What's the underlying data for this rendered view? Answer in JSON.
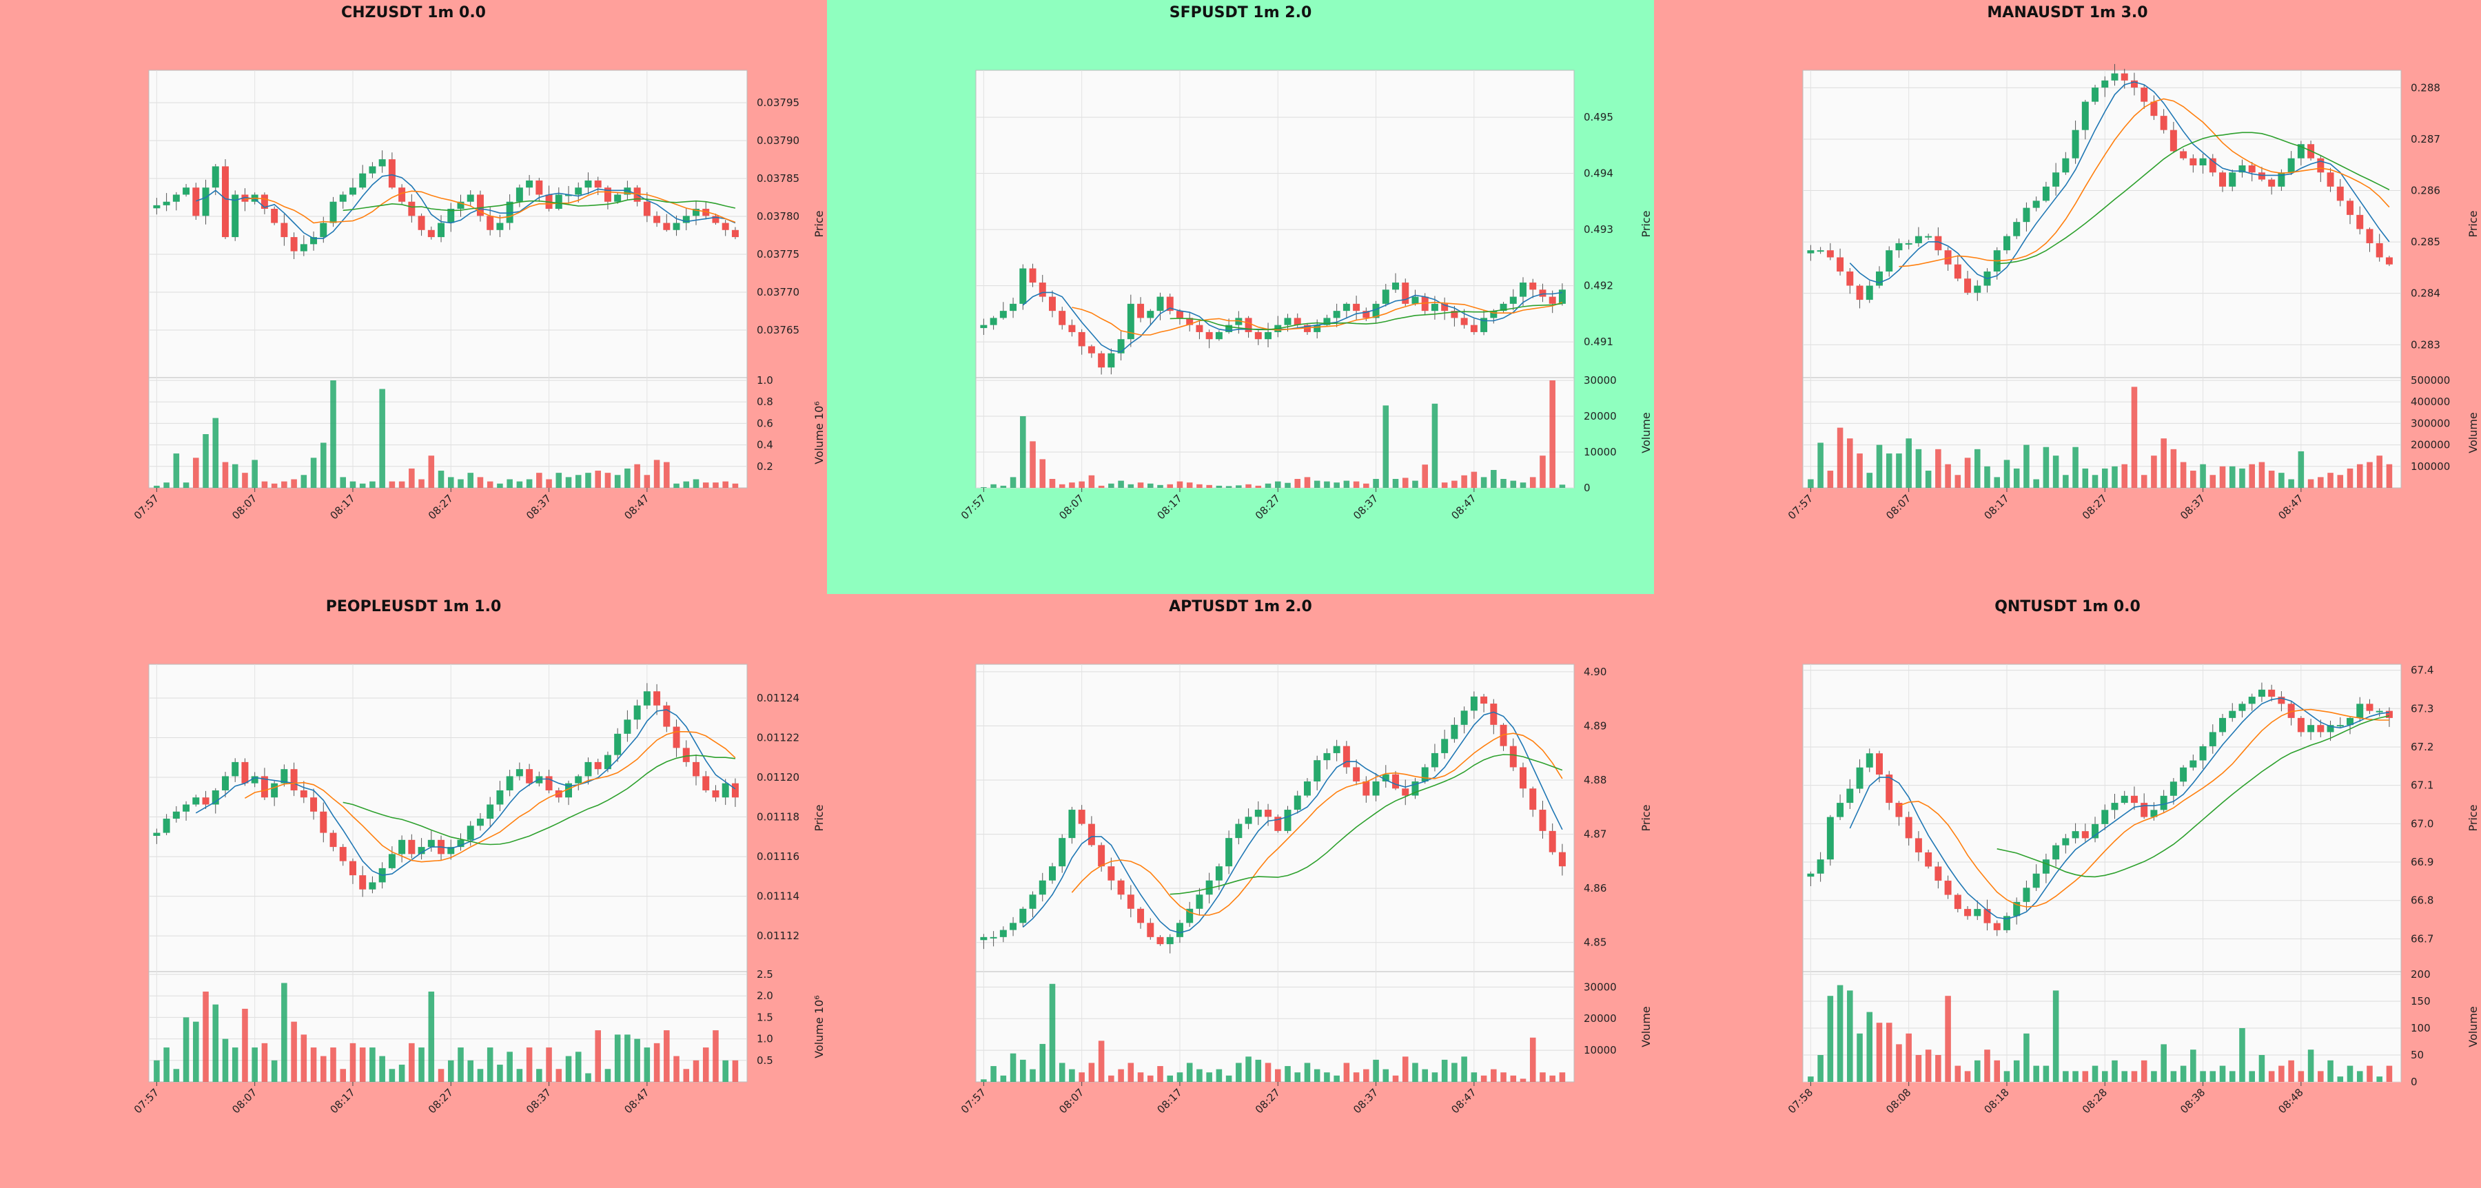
{
  "chart_data": [
    {
      "type": "candlestick",
      "title": "CHZUSDT 1m 0.0",
      "background": "#ffa09b",
      "ylabel": "Price",
      "vlabel": "Volume",
      "vmult": "10⁶",
      "price_ticks": [
        "0.03765",
        "0.03770",
        "0.03775",
        "0.03780",
        "0.03785",
        "0.03790",
        "0.03795"
      ],
      "price_range": [
        0.03759,
        0.03799
      ],
      "vol_ticks": [
        "0.2",
        "0.4",
        "0.6",
        "0.8",
        "1.0"
      ],
      "vol_max": 1.0,
      "x_ticks": [
        "07:57",
        "08:07",
        "08:17",
        "08:27",
        "08:37",
        "08:47"
      ],
      "first_tick_index": 0,
      "tick_spacing": 10,
      "n": 60,
      "start": 0.03781,
      "drift": [
        0.5,
        1,
        2,
        3,
        -1,
        3,
        6,
        -4,
        2,
        1,
        2,
        0,
        -2,
        -4,
        -6,
        -5,
        -4,
        -2,
        1,
        2,
        3,
        5,
        6,
        7,
        3,
        1,
        -1,
        -3,
        -4,
        -2,
        0,
        1,
        2,
        -1,
        -3,
        -2,
        1,
        3,
        4,
        2,
        0,
        2,
        2,
        3,
        4,
        3,
        1,
        2,
        3,
        1,
        -1,
        -2,
        -3,
        -2,
        -1,
        0,
        -1,
        -2,
        -3,
        -4
      ],
      "volume": [
        0.02,
        0.05,
        0.32,
        0.05,
        0.28,
        0.5,
        0.65,
        0.24,
        0.22,
        0.14,
        0.26,
        0.06,
        0.04,
        0.06,
        0.08,
        0.12,
        0.28,
        0.42,
        1.0,
        0.1,
        0.06,
        0.04,
        0.06,
        0.92,
        0.06,
        0.06,
        0.18,
        0.08,
        0.3,
        0.16,
        0.1,
        0.08,
        0.14,
        0.1,
        0.06,
        0.04,
        0.08,
        0.06,
        0.08,
        0.14,
        0.08,
        0.14,
        0.1,
        0.12,
        0.14,
        0.16,
        0.14,
        0.12,
        0.18,
        0.22,
        0.12,
        0.26,
        0.24,
        0.04,
        0.06,
        0.08,
        0.05,
        0.05,
        0.06,
        0.04
      ]
    },
    {
      "type": "candlestick",
      "title": "SFPUSDT 1m 2.0",
      "background": "#8fffbf",
      "ylabel": "Price",
      "vlabel": "Volume",
      "vmult": "",
      "price_ticks": [
        "0.491",
        "0.492",
        "0.493",
        "0.494",
        "0.495"
      ],
      "price_range": [
        0.4904,
        0.4958
      ],
      "vol_ticks": [
        "0",
        "10000",
        "20000",
        "30000"
      ],
      "vol_max": 30000,
      "x_ticks": [
        "07:57",
        "08:07",
        "08:17",
        "08:27",
        "08:37",
        "08:47"
      ],
      "first_tick_index": 0,
      "tick_spacing": 10,
      "n": 60,
      "start": 0.4913,
      "drift": [
        0,
        1,
        2,
        3,
        8,
        6,
        4,
        2,
        0,
        -1,
        -3,
        -4,
        -6,
        -4,
        -2,
        3,
        1,
        2,
        4,
        2,
        1,
        0,
        -1,
        -2,
        -1,
        0,
        1,
        -1,
        -2,
        -1,
        0,
        1,
        0,
        -1,
        0,
        1,
        2,
        3,
        2,
        1,
        3,
        5,
        6,
        3,
        4,
        2,
        3,
        2,
        1,
        0,
        -1,
        1,
        2,
        3,
        4,
        6,
        5,
        4,
        3,
        5
      ],
      "volume": [
        200,
        1000,
        600,
        3000,
        20000,
        13000,
        8000,
        2500,
        1000,
        1500,
        1800,
        3500,
        600,
        1200,
        2000,
        1000,
        1500,
        1200,
        800,
        1000,
        1800,
        1500,
        1000,
        800,
        600,
        500,
        700,
        1000,
        600,
        1200,
        1800,
        1400,
        2500,
        3000,
        2000,
        1800,
        1500,
        2000,
        1800,
        1200,
        2500,
        23000,
        2500,
        2800,
        2000,
        6500,
        23500,
        1500,
        2000,
        3500,
        4500,
        3000,
        5000,
        2500,
        2000,
        1500,
        3000,
        9000,
        30000,
        900
      ]
    },
    {
      "type": "candlestick",
      "title": "MANAUSDT 1m 3.0",
      "background": "#ffa09b",
      "ylabel": "Price",
      "vlabel": "Volume",
      "vmult": "",
      "price_ticks": [
        "0.283",
        "0.284",
        "0.285",
        "0.286",
        "0.287",
        "0.288"
      ],
      "price_range": [
        0.2824,
        0.2883
      ],
      "vol_ticks": [
        "100000",
        "200000",
        "300000",
        "400000",
        "500000"
      ],
      "vol_max": 500000,
      "x_ticks": [
        "07:57",
        "08:07",
        "08:17",
        "08:27",
        "08:37",
        "08:47"
      ],
      "first_tick_index": 0,
      "tick_spacing": 10,
      "n": 60,
      "start": 0.2847,
      "drift": [
        1,
        1,
        0,
        -2,
        -4,
        -6,
        -4,
        -2,
        1,
        2,
        2,
        3,
        3,
        1,
        -1,
        -3,
        -5,
        -4,
        -2,
        1,
        3,
        5,
        7,
        8,
        10,
        12,
        14,
        18,
        22,
        24,
        25,
        26,
        25,
        24,
        22,
        20,
        18,
        15,
        14,
        13,
        14,
        12,
        10,
        12,
        13,
        12,
        11,
        10,
        12,
        14,
        16,
        14,
        12,
        10,
        8,
        6,
        4,
        2,
        0,
        -1
      ],
      "volume": [
        40000,
        210000,
        80000,
        280000,
        230000,
        160000,
        70000,
        200000,
        160000,
        160000,
        230000,
        180000,
        80000,
        180000,
        110000,
        60000,
        140000,
        180000,
        100000,
        50000,
        130000,
        90000,
        200000,
        40000,
        190000,
        150000,
        60000,
        190000,
        90000,
        60000,
        90000,
        100000,
        110000,
        470000,
        60000,
        150000,
        230000,
        180000,
        120000,
        80000,
        110000,
        60000,
        100000,
        100000,
        90000,
        110000,
        120000,
        80000,
        70000,
        40000,
        170000,
        40000,
        50000,
        70000,
        60000,
        90000,
        110000,
        120000,
        150000,
        110000
      ]
    },
    {
      "type": "candlestick",
      "title": "PEOPLEUSDT 1m 1.0",
      "background": "#ffa09b",
      "ylabel": "Price",
      "vlabel": "Volume",
      "vmult": "10⁶",
      "price_ticks": [
        "0.01112",
        "0.01114",
        "0.01116",
        "0.01118",
        "0.01120",
        "0.01122",
        "0.01124"
      ],
      "price_range": [
        0.011103,
        0.011256
      ],
      "vol_ticks": [
        "0.5",
        "1.0",
        "1.5",
        "2.0",
        "2.5"
      ],
      "vol_max": 2.5,
      "x_ticks": [
        "07:57",
        "08:07",
        "08:17",
        "08:27",
        "08:37",
        "08:47"
      ],
      "first_tick_index": 0,
      "tick_spacing": 10,
      "n": 60,
      "start": 0.011172,
      "drift": [
        0,
        2,
        3,
        4,
        5,
        4,
        6,
        8,
        10,
        7,
        8,
        5,
        7,
        9,
        6,
        5,
        3,
        0,
        -2,
        -4,
        -6,
        -8,
        -7,
        -5,
        -3,
        -1,
        -3,
        -2,
        -1,
        -3,
        -2,
        -1,
        1,
        2,
        4,
        6,
        8,
        9,
        7,
        8,
        6,
        5,
        7,
        8,
        10,
        9,
        11,
        14,
        16,
        18,
        20,
        18,
        15,
        12,
        10,
        8,
        6,
        5,
        7,
        5
      ],
      "volume": [
        0.5,
        0.8,
        0.3,
        1.5,
        1.4,
        2.1,
        1.8,
        1.0,
        0.8,
        1.7,
        0.8,
        0.9,
        0.5,
        2.3,
        1.4,
        1.1,
        0.8,
        0.6,
        0.8,
        0.3,
        0.9,
        0.8,
        0.8,
        0.6,
        0.3,
        0.4,
        0.9,
        0.8,
        2.1,
        0.3,
        0.5,
        0.8,
        0.5,
        0.3,
        0.8,
        0.4,
        0.7,
        0.3,
        0.8,
        0.3,
        0.8,
        0.3,
        0.6,
        0.7,
        0.2,
        1.2,
        0.3,
        1.1,
        1.1,
        1.0,
        0.8,
        0.9,
        1.2,
        0.6,
        0.3,
        0.5,
        0.8,
        1.2,
        0.5,
        0.5
      ]
    },
    {
      "type": "candlestick",
      "title": "APTUSDT 1m 2.0",
      "background": "#ffa09b",
      "ylabel": "Price",
      "vlabel": "Volume",
      "vmult": "",
      "price_ticks": [
        "4.85",
        "4.86",
        "4.87",
        "4.88",
        "4.89",
        "4.90"
      ],
      "price_range": [
        4.845,
        4.901
      ],
      "vol_ticks": [
        "10000",
        "20000",
        "30000"
      ],
      "vol_max": 34000,
      "x_ticks": [
        "07:57",
        "08:07",
        "08:17",
        "08:27",
        "08:37",
        "08:47"
      ],
      "first_tick_index": 0,
      "tick_spacing": 10,
      "n": 60,
      "start": 4.851,
      "drift": [
        0,
        0,
        1,
        2,
        4,
        6,
        8,
        10,
        14,
        18,
        16,
        13,
        10,
        8,
        6,
        4,
        2,
        0,
        -1,
        0,
        2,
        4,
        6,
        8,
        10,
        14,
        16,
        17,
        18,
        17,
        15,
        18,
        20,
        22,
        25,
        26,
        27,
        24,
        22,
        20,
        22,
        23,
        21,
        20,
        22,
        24,
        26,
        28,
        30,
        32,
        34,
        33,
        30,
        27,
        24,
        21,
        18,
        15,
        12,
        10
      ],
      "volume": [
        800,
        5000,
        2000,
        9000,
        7000,
        4000,
        12000,
        31000,
        6000,
        4000,
        3000,
        6000,
        13000,
        2000,
        4000,
        6000,
        3000,
        2000,
        5000,
        2000,
        3000,
        6000,
        4000,
        3000,
        4000,
        2000,
        6000,
        8000,
        7000,
        6000,
        4000,
        5000,
        3000,
        6000,
        4000,
        3000,
        2000,
        6000,
        3000,
        4000,
        7000,
        4000,
        2000,
        8000,
        6000,
        4000,
        3000,
        7000,
        6000,
        8000,
        3000,
        2000,
        4000,
        3000,
        2000,
        1000,
        14000,
        3000,
        2000,
        3000
      ]
    },
    {
      "type": "candlestick",
      "title": "QNTUSDT 1m 0.0",
      "background": "#ffa09b",
      "ylabel": "Price",
      "vlabel": "Volume",
      "vmult": "",
      "price_ticks": [
        "66.7",
        "66.8",
        "66.9",
        "67.0",
        "67.1",
        "67.2",
        "67.3",
        "67.4"
      ],
      "price_range": [
        66.62,
        67.41
      ],
      "vol_ticks": [
        "0",
        "50",
        "100",
        "150",
        "200"
      ],
      "vol_max": 200,
      "x_ticks": [
        "07:58",
        "08:08",
        "08:18",
        "08:28",
        "08:38",
        "08:48"
      ],
      "first_tick_index": 0,
      "tick_spacing": 10,
      "n": 60,
      "start": 66.87,
      "drift": [
        0,
        2,
        8,
        10,
        12,
        15,
        17,
        14,
        10,
        8,
        5,
        3,
        1,
        -1,
        -3,
        -5,
        -6,
        -5,
        -7,
        -8,
        -6,
        -4,
        -2,
        0,
        2,
        4,
        5,
        6,
        5,
        7,
        9,
        10,
        11,
        10,
        8,
        9,
        11,
        13,
        15,
        16,
        18,
        20,
        22,
        23,
        24,
        25,
        26,
        25,
        24,
        22,
        20,
        21,
        20,
        21,
        21,
        22,
        24,
        23,
        23,
        22
      ],
      "volume": [
        10,
        50,
        160,
        180,
        170,
        90,
        130,
        110,
        110,
        70,
        90,
        50,
        60,
        50,
        160,
        30,
        20,
        40,
        60,
        40,
        20,
        40,
        90,
        30,
        30,
        170,
        20,
        20,
        20,
        30,
        20,
        40,
        20,
        20,
        40,
        20,
        70,
        20,
        30,
        60,
        20,
        20,
        30,
        20,
        100,
        20,
        50,
        20,
        30,
        40,
        20,
        60,
        20,
        40,
        10,
        30,
        20,
        30,
        10,
        30
      ]
    }
  ]
}
